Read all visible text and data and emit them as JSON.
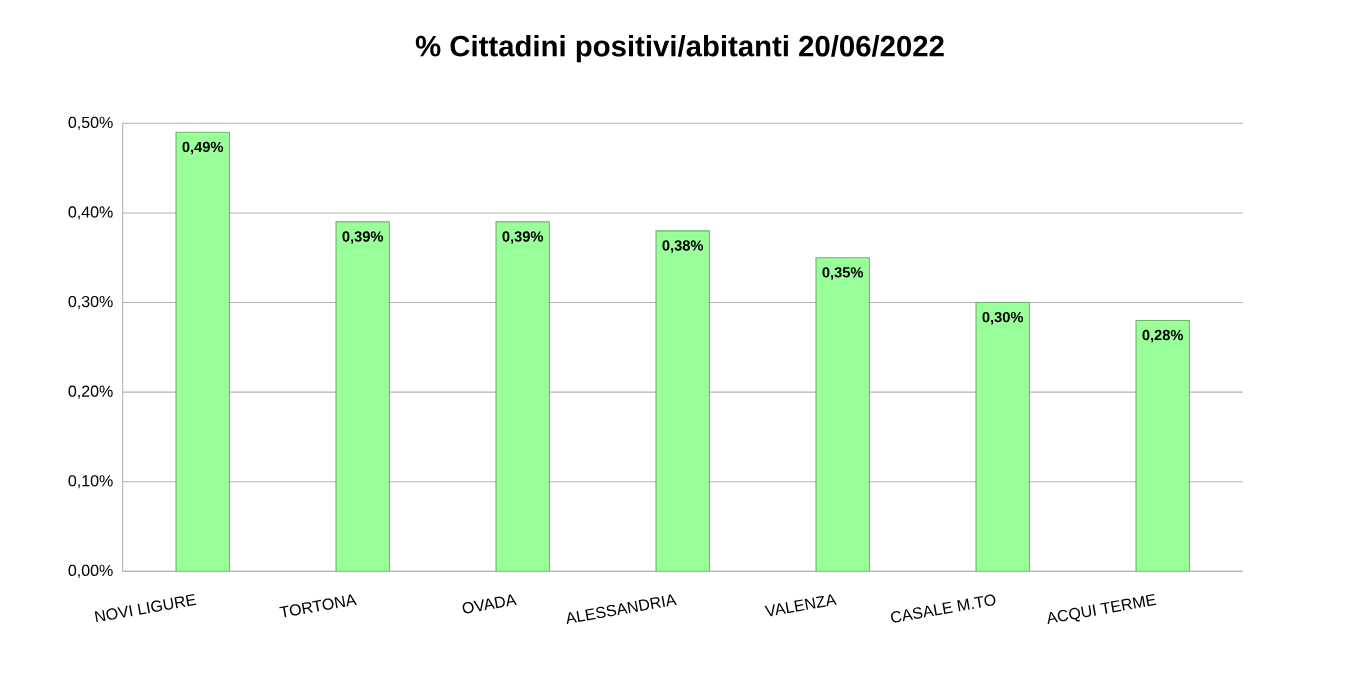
{
  "chart_data": {
    "type": "bar",
    "title": "% Cittadini positivi/abitanti 20/06/2022",
    "categories": [
      "NOVI LIGURE",
      "TORTONA",
      "OVADA",
      "ALESSANDRIA",
      "VALENZA",
      "CASALE M.TO",
      "ACQUI TERME"
    ],
    "values": [
      0.49,
      0.39,
      0.39,
      0.38,
      0.35,
      0.3,
      0.28
    ],
    "value_labels": [
      "0,49%",
      "0,39%",
      "0,39%",
      "0,38%",
      "0,35%",
      "0,30%",
      "0,28%"
    ],
    "color": "#99ff99",
    "ylim": [
      0,
      0.5
    ],
    "yticks": [
      {
        "value": 0,
        "label": "0,00%"
      },
      {
        "value": 0.1,
        "label": "0,10%"
      },
      {
        "value": 0.2,
        "label": "0,20%"
      },
      {
        "value": 0.3,
        "label": "0,30%"
      },
      {
        "value": 0.4,
        "label": "0,40%"
      },
      {
        "value": 0.5,
        "label": "0,50%"
      }
    ],
    "grid": "y"
  }
}
